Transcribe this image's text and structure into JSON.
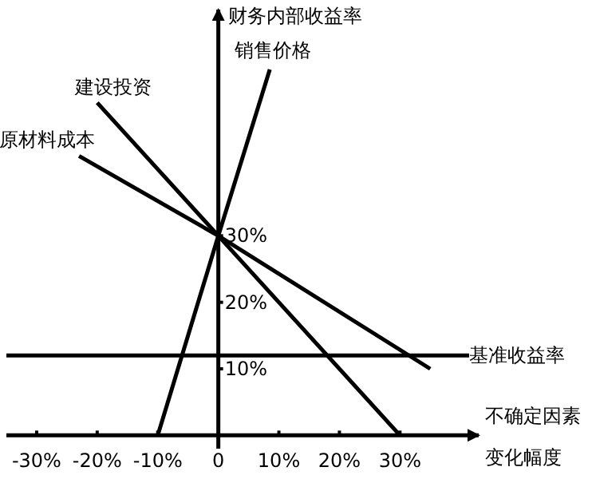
{
  "chart_data": {
    "type": "line",
    "xlabel": "不确定因素变化幅度",
    "ylabel": "财务内部收益率",
    "xlim": [
      -35,
      43
    ],
    "ylim": [
      -2,
      64
    ],
    "xticks": [
      {
        "value": -30,
        "label": "-30%"
      },
      {
        "value": -20,
        "label": "-20%"
      },
      {
        "value": -10,
        "label": "-10%"
      },
      {
        "value": 0,
        "label": "0"
      },
      {
        "value": 10,
        "label": "10%"
      },
      {
        "value": 20,
        "label": "20%"
      },
      {
        "value": 30,
        "label": "30%"
      }
    ],
    "yticks": [
      {
        "value": 10,
        "label": "10%"
      },
      {
        "value": 20,
        "label": "20%"
      },
      {
        "value": 30,
        "label": "30%"
      }
    ],
    "series": [
      {
        "name": "销售价格",
        "color": "#000000",
        "x": [
          -10,
          0,
          8.5
        ],
        "values": [
          0,
          30,
          55
        ]
      },
      {
        "name": "建设投资",
        "color": "#000000",
        "x": [
          -20,
          0,
          30
        ],
        "values": [
          50,
          30,
          0
        ]
      },
      {
        "name": "原材料成本",
        "color": "#000000",
        "x": [
          -23,
          0,
          35
        ],
        "values": [
          42,
          30,
          10
        ]
      }
    ],
    "ref_lines": [
      {
        "axis": "y",
        "value": 12,
        "label": "基准收益率",
        "color": "#000000"
      }
    ],
    "marker": "none",
    "line_style": "solid",
    "grid": false
  }
}
